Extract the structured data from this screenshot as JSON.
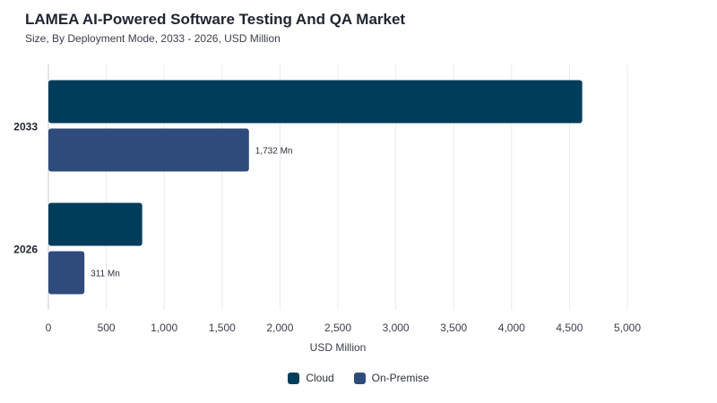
{
  "header": {
    "title": "LAMEA AI-Powered Software Testing And QA Market",
    "subtitle": "Size, By Deployment Mode, 2033 - 2026, USD Million"
  },
  "chart_data": {
    "type": "bar",
    "orientation": "horizontal",
    "categories": [
      "2033",
      "2026"
    ],
    "series": [
      {
        "name": "Cloud",
        "color": "#003d5b",
        "values": [
          4610,
          810
        ],
        "labels": [
          "",
          ""
        ]
      },
      {
        "name": "On-Premise",
        "color": "#2f4b7c",
        "values": [
          1732,
          311
        ],
        "labels": [
          "1,732 Mn",
          "311 Mn"
        ]
      }
    ],
    "xlabel": "USD Million",
    "xlim": [
      0,
      5000
    ],
    "xticks": [
      0,
      500,
      1000,
      1500,
      2000,
      2500,
      3000,
      3500,
      4000,
      4500,
      5000
    ],
    "xtick_labels": [
      "0",
      "500",
      "1,000",
      "1,500",
      "2,000",
      "2,500",
      "3,000",
      "3,500",
      "4,000",
      "4,500",
      "5,000"
    ],
    "grid": true,
    "legend_position": "bottom-center"
  }
}
